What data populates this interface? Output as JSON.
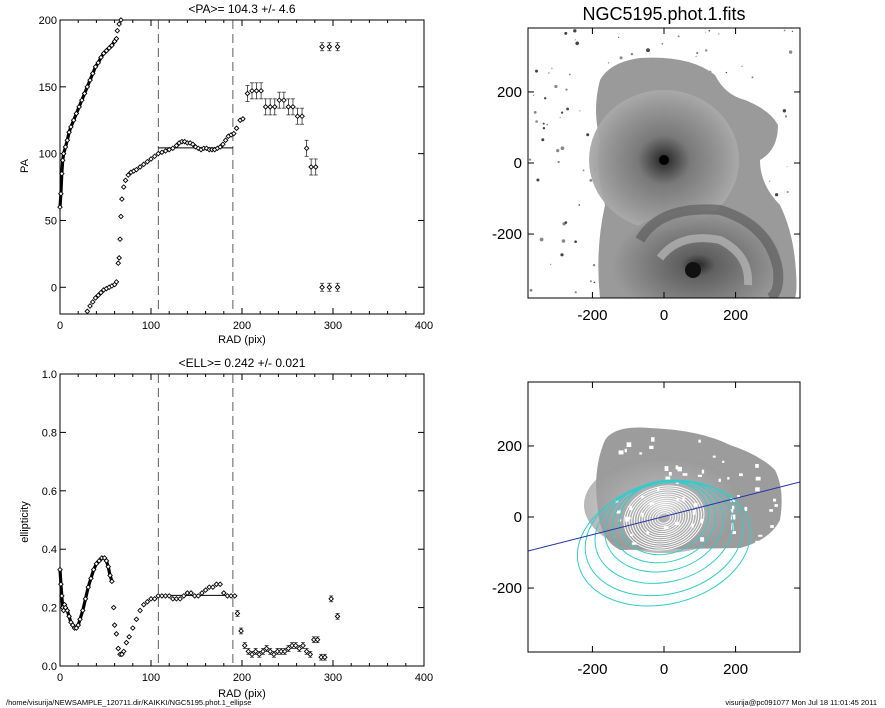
{
  "chart_data": [
    {
      "id": "pa",
      "type": "scatter",
      "title": "<PA>= 104.3 +/-   4.6",
      "xlabel": "RAD (pix)",
      "ylabel": "PA",
      "xlim": [
        0,
        400
      ],
      "ylim": [
        -20,
        200
      ],
      "xticks": [
        0,
        100,
        200,
        300,
        400
      ],
      "yticks": [
        0,
        50,
        100,
        150,
        200
      ],
      "vlines": [
        108,
        190
      ],
      "mean_line": {
        "x": [
          108,
          190
        ],
        "y": 104.3
      },
      "series": [
        {
          "points": [
            [
              0,
              60
            ],
            [
              1,
              70
            ],
            [
              2,
              85
            ],
            [
              3,
              95
            ],
            [
              4,
              100
            ],
            [
              6,
              105
            ],
            [
              8,
              110
            ],
            [
              10,
              116
            ],
            [
              12,
              120
            ],
            [
              15,
              125
            ],
            [
              18,
              130
            ],
            [
              21,
              135
            ],
            [
              24,
              140
            ],
            [
              27,
              145
            ],
            [
              30,
              150
            ],
            [
              33,
              155
            ],
            [
              36,
              160
            ],
            [
              39,
              165
            ],
            [
              42,
              168
            ],
            [
              45,
              172
            ],
            [
              48,
              175
            ],
            [
              51,
              177
            ],
            [
              54,
              179
            ],
            [
              57,
              181
            ],
            [
              60,
              184
            ],
            [
              62,
              186
            ]
          ],
          "connected": true
        },
        {
          "points": [
            [
              63,
              192
            ],
            [
              65,
              197
            ],
            [
              67,
              200
            ]
          ]
        },
        {
          "points": [
            [
              30,
              -18
            ],
            [
              33,
              -14
            ],
            [
              36,
              -11
            ],
            [
              39,
              -8
            ],
            [
              42,
              -6
            ],
            [
              45,
              -4
            ],
            [
              48,
              -2
            ],
            [
              51,
              -1
            ],
            [
              54,
              0
            ],
            [
              57,
              1
            ],
            [
              60,
              2
            ],
            [
              62,
              4
            ]
          ]
        },
        {
          "points": [
            [
              64,
              18
            ],
            [
              65,
              22
            ],
            [
              66,
              36
            ],
            [
              67,
              53
            ],
            [
              68,
              66
            ],
            [
              70,
              75
            ],
            [
              72,
              80
            ],
            [
              75,
              84
            ],
            [
              78,
              86
            ],
            [
              81,
              87
            ],
            [
              84,
              88
            ],
            [
              88,
              90
            ],
            [
              92,
              92
            ],
            [
              96,
              94
            ],
            [
              100,
              96
            ],
            [
              104,
              98
            ],
            [
              108,
              100
            ],
            [
              112,
              101
            ],
            [
              116,
              102
            ],
            [
              120,
              103
            ],
            [
              124,
              104
            ],
            [
              128,
              106
            ],
            [
              131,
              108
            ],
            [
              134,
              109
            ],
            [
              137,
              109
            ],
            [
              140,
              108
            ],
            [
              143,
              108
            ],
            [
              146,
              107
            ],
            [
              149,
              105
            ],
            [
              152,
              104
            ],
            [
              155,
              103
            ],
            [
              158,
              104
            ],
            [
              161,
              104
            ],
            [
              164,
              103
            ],
            [
              167,
              103
            ],
            [
              170,
              103
            ],
            [
              173,
              104
            ],
            [
              176,
              105
            ],
            [
              179,
              107
            ],
            [
              182,
              110
            ],
            [
              185,
              113
            ],
            [
              188,
              114
            ],
            [
              191,
              115
            ],
            [
              194,
              119
            ],
            [
              198,
              125
            ],
            [
              201,
              126
            ]
          ]
        },
        {
          "points": [
            [
              206,
              145
            ],
            [
              211,
              147
            ],
            [
              216,
              147
            ],
            [
              221,
              147
            ],
            [
              226,
              135
            ],
            [
              231,
              135
            ],
            [
              236,
              135
            ],
            [
              241,
              140
            ],
            [
              246,
              140
            ],
            [
              251,
              135
            ],
            [
              256,
              135
            ],
            [
              261,
              128
            ],
            [
              266,
              128
            ],
            [
              271,
              104
            ],
            [
              276,
              90
            ],
            [
              281,
              90
            ]
          ],
          "err": 6
        },
        {
          "points": [
            [
              288,
              180
            ],
            [
              296,
              180
            ],
            [
              305,
              180
            ]
          ],
          "err": 3
        },
        {
          "points": [
            [
              288,
              0
            ],
            [
              296,
              0
            ],
            [
              305,
              0
            ]
          ],
          "err": 3
        }
      ]
    },
    {
      "id": "ell",
      "type": "scatter",
      "title": "<ELL>= 0.242 +/-  0.021",
      "xlabel": "RAD (pix)",
      "ylabel": "ellipticity",
      "xlim": [
        0,
        400
      ],
      "ylim": [
        0.0,
        1.0
      ],
      "xticks": [
        0,
        100,
        200,
        300,
        400
      ],
      "yticks": [
        0.0,
        0.2,
        0.4,
        0.6,
        0.8,
        1.0
      ],
      "vlines": [
        108,
        190
      ],
      "mean_line": {
        "x": [
          108,
          190
        ],
        "y": 0.242
      },
      "series": [
        {
          "points": [
            [
              0,
              0.33
            ],
            [
              1,
              0.28
            ],
            [
              2,
              0.24
            ],
            [
              3,
              0.2
            ],
            [
              4,
              0.19
            ],
            [
              5,
              0.21
            ],
            [
              6,
              0.2
            ],
            [
              8,
              0.19
            ],
            [
              10,
              0.17
            ],
            [
              12,
              0.15
            ],
            [
              14,
              0.14
            ],
            [
              16,
              0.13
            ],
            [
              18,
              0.13
            ],
            [
              20,
              0.14
            ],
            [
              22,
              0.16
            ],
            [
              25,
              0.19
            ],
            [
              28,
              0.23
            ],
            [
              31,
              0.27
            ],
            [
              34,
              0.3
            ],
            [
              37,
              0.33
            ],
            [
              40,
              0.35
            ],
            [
              43,
              0.36
            ],
            [
              46,
              0.37
            ],
            [
              49,
              0.37
            ],
            [
              51,
              0.36
            ],
            [
              53,
              0.34
            ],
            [
              55,
              0.31
            ],
            [
              57,
              0.29
            ]
          ],
          "connected": true
        },
        {
          "points": [
            [
              59,
              0.2
            ],
            [
              60,
              0.14
            ],
            [
              62,
              0.11
            ],
            [
              64,
              0.06
            ],
            [
              66,
              0.04
            ],
            [
              68,
              0.04
            ],
            [
              70,
              0.05
            ],
            [
              73,
              0.08
            ],
            [
              76,
              0.1
            ],
            [
              80,
              0.13
            ],
            [
              84,
              0.16
            ],
            [
              88,
              0.19
            ],
            [
              92,
              0.21
            ],
            [
              96,
              0.22
            ],
            [
              100,
              0.23
            ],
            [
              104,
              0.23
            ],
            [
              108,
              0.24
            ],
            [
              112,
              0.24
            ],
            [
              116,
              0.24
            ],
            [
              120,
              0.24
            ],
            [
              124,
              0.23
            ],
            [
              128,
              0.23
            ],
            [
              132,
              0.23
            ],
            [
              136,
              0.24
            ],
            [
              140,
              0.25
            ],
            [
              144,
              0.25
            ],
            [
              148,
              0.24
            ],
            [
              152,
              0.24
            ],
            [
              156,
              0.25
            ],
            [
              160,
              0.26
            ],
            [
              164,
              0.27
            ],
            [
              168,
              0.27
            ],
            [
              172,
              0.28
            ],
            [
              176,
              0.28
            ],
            [
              180,
              0.25
            ],
            [
              184,
              0.24
            ],
            [
              188,
              0.24
            ],
            [
              192,
              0.24
            ]
          ]
        },
        {
          "points": [
            [
              195,
              0.18
            ],
            [
              199,
              0.12
            ],
            [
              203,
              0.07
            ],
            [
              207,
              0.05
            ],
            [
              211,
              0.04
            ],
            [
              215,
              0.05
            ],
            [
              219,
              0.04
            ],
            [
              223,
              0.05
            ],
            [
              227,
              0.06
            ],
            [
              231,
              0.05
            ],
            [
              235,
              0.04
            ],
            [
              239,
              0.05
            ],
            [
              243,
              0.05
            ],
            [
              247,
              0.05
            ],
            [
              251,
              0.06
            ],
            [
              255,
              0.07
            ],
            [
              259,
              0.07
            ],
            [
              263,
              0.06
            ],
            [
              267,
              0.07
            ],
            [
              271,
              0.05
            ],
            [
              275,
              0.04
            ],
            [
              279,
              0.09
            ],
            [
              283,
              0.09
            ],
            [
              287,
              0.03
            ],
            [
              291,
              0.03
            ],
            [
              298,
              0.23
            ],
            [
              305,
              0.17
            ]
          ],
          "err": 0.01
        }
      ]
    }
  ],
  "images": {
    "top": {
      "title": "NGC5195.phot.1.fits",
      "xticks": [
        -200,
        0,
        200
      ],
      "yticks": [
        200,
        0,
        -200
      ],
      "range": [
        -380,
        380
      ]
    },
    "bottom": {
      "title": "",
      "xticks": [
        -200,
        0,
        200
      ],
      "yticks": [
        200,
        0,
        -200
      ],
      "range": [
        -380,
        380
      ],
      "line_color": "#2233aa",
      "ellipse_color": "#33cccc"
    }
  },
  "footer": {
    "left": "/home/visurija/NEWSAMPLE_120711.dir/KAIKKI/NGC5195.phot.1_ellipse",
    "right": "visurija@pc091077  Mon Jul 18 11:01:45 2011"
  }
}
